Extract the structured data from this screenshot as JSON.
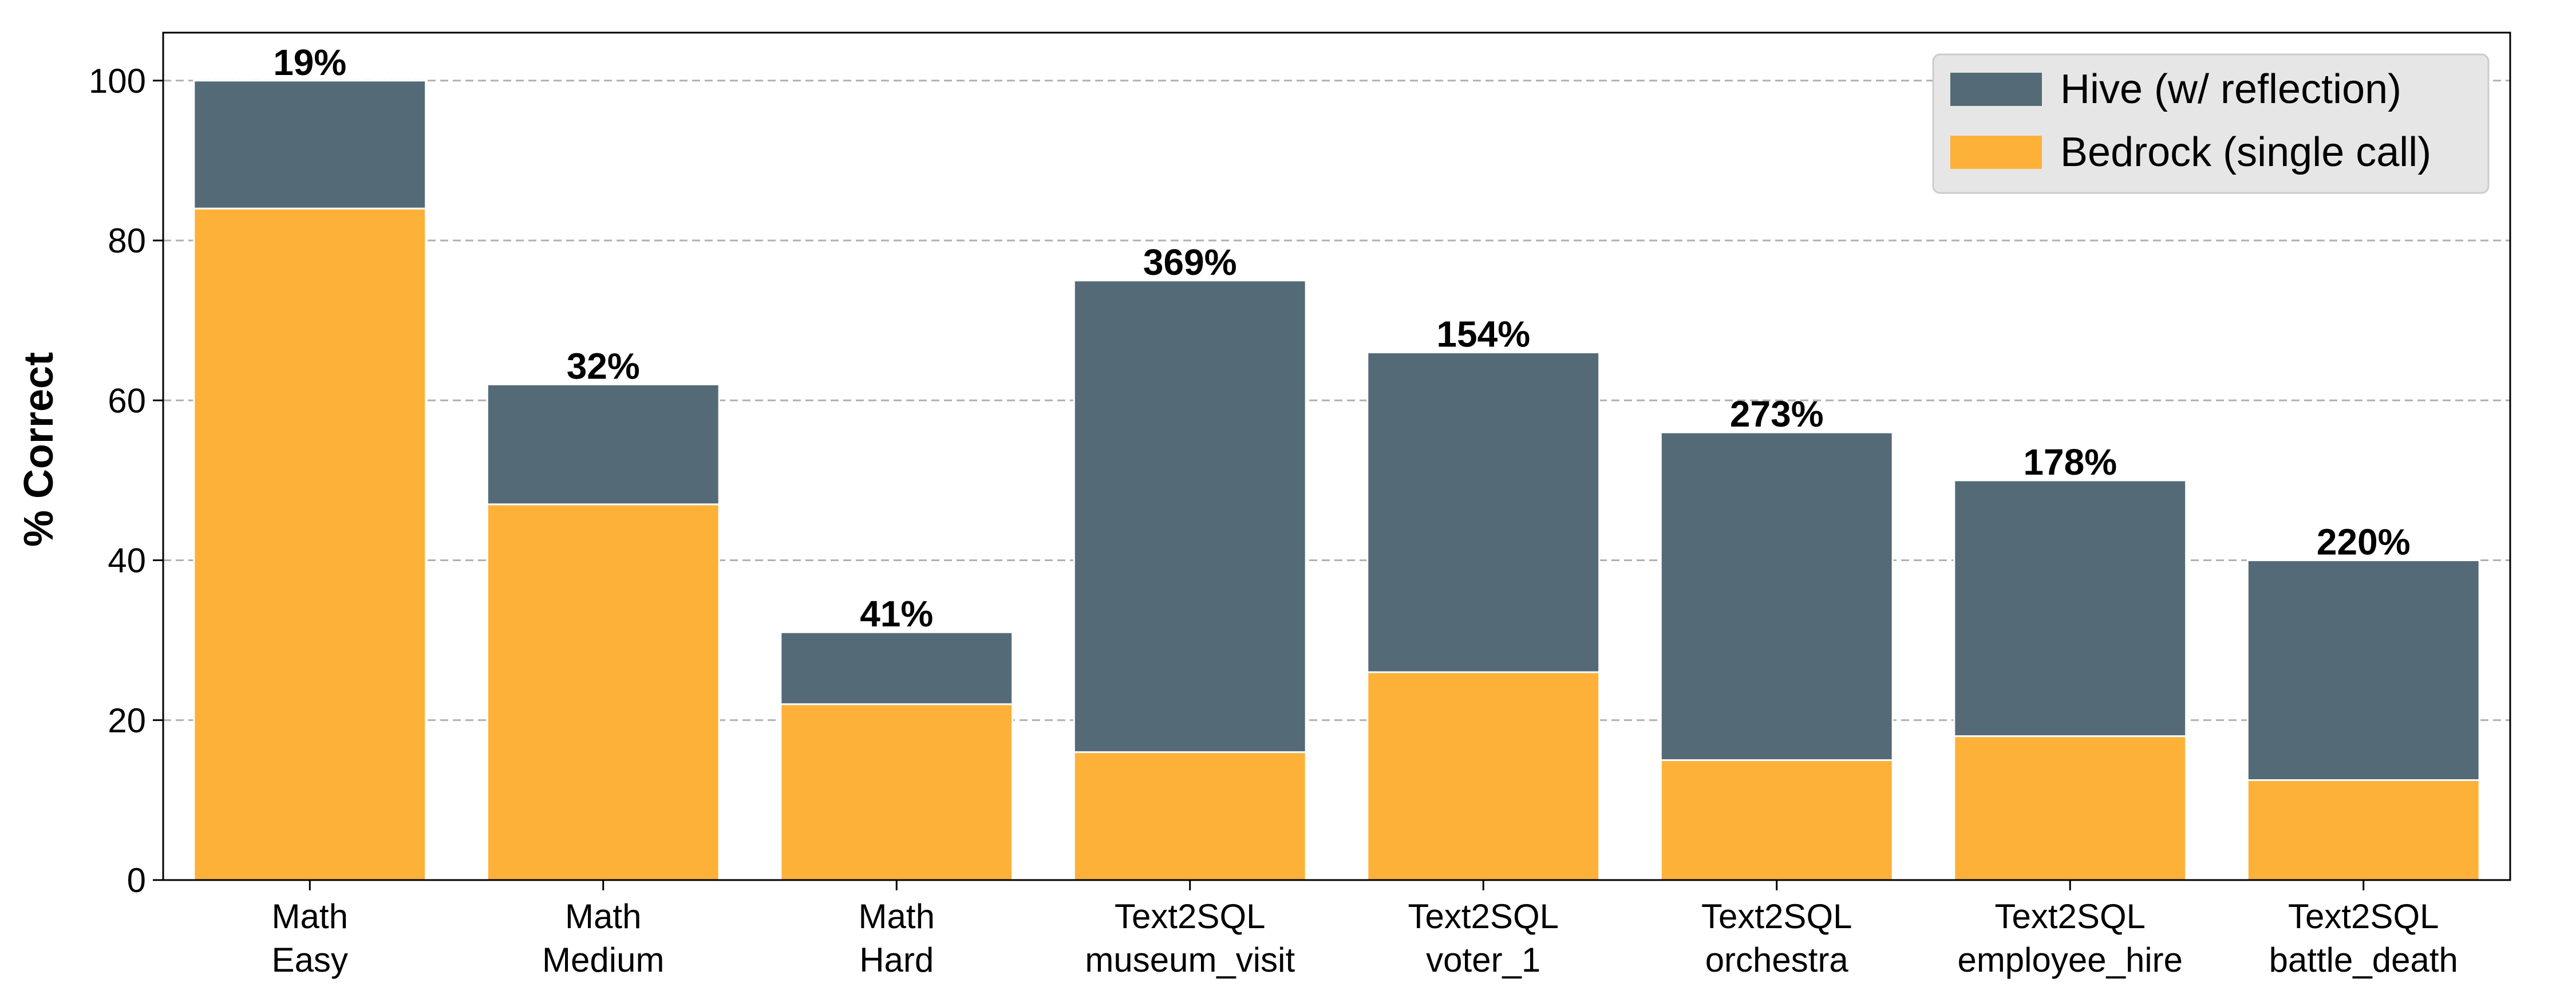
{
  "chart_data": {
    "type": "bar",
    "stacked": true,
    "ylabel": "% Correct",
    "ylim": [
      0,
      106
    ],
    "yticks": [
      0,
      20,
      40,
      60,
      80,
      100
    ],
    "grid": "y",
    "legend_position": "top-right",
    "categories": [
      [
        "Math",
        "Easy"
      ],
      [
        "Math",
        "Medium"
      ],
      [
        "Math",
        "Hard"
      ],
      [
        "Text2SQL",
        "museum_visit"
      ],
      [
        "Text2SQL",
        "voter_1"
      ],
      [
        "Text2SQL",
        "orchestra"
      ],
      [
        "Text2SQL",
        "employee_hire"
      ],
      [
        "Text2SQL",
        "battle_death"
      ]
    ],
    "series": [
      {
        "name": "Bedrock (single call)",
        "color": "#FDB138",
        "values": [
          84,
          47,
          22,
          16,
          26,
          15,
          18,
          12.5
        ]
      },
      {
        "name": "Hive (w/ reflection)",
        "color": "#546A77",
        "totals": [
          100,
          62,
          31,
          75,
          66,
          56,
          50,
          40
        ]
      }
    ],
    "bar_labels": [
      "19%",
      "32%",
      "41%",
      "369%",
      "154%",
      "273%",
      "178%",
      "220%"
    ],
    "legend_order": [
      1,
      0
    ]
  }
}
